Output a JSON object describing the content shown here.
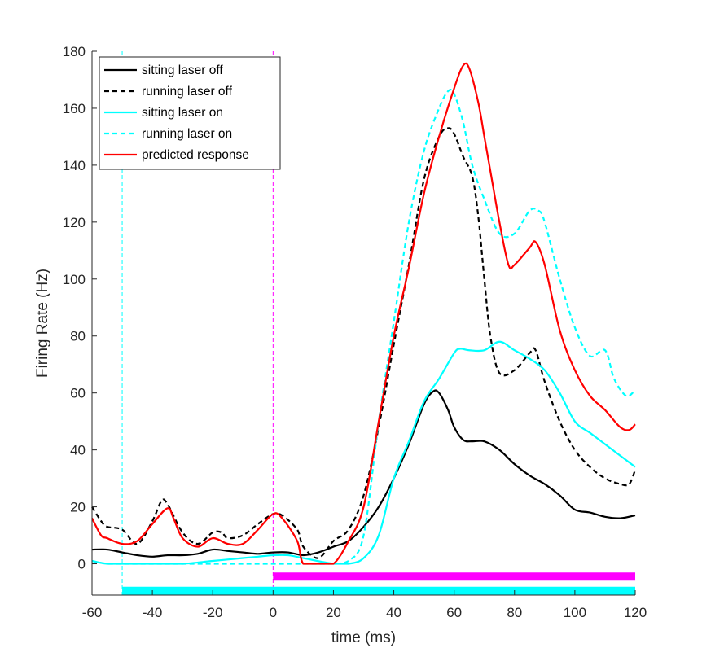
{
  "chart_data": {
    "type": "line",
    "title": "",
    "xlabel": "time (ms)",
    "ylabel": "Firing Rate (Hz)",
    "xlim": [
      -60,
      120
    ],
    "ylim": [
      -11,
      180
    ],
    "xticks": [
      -60,
      -40,
      -20,
      0,
      20,
      40,
      60,
      80,
      100,
      120
    ],
    "yticks": [
      0,
      20,
      40,
      60,
      80,
      100,
      120,
      140,
      160,
      180
    ],
    "grid": false,
    "legend_position": "top-left",
    "series": [
      {
        "name": "sitting laser off",
        "color": "#000000",
        "dash": "solid",
        "points": [
          [
            -60,
            5
          ],
          [
            -55,
            5
          ],
          [
            -50,
            4
          ],
          [
            -45,
            3
          ],
          [
            -40,
            2.5
          ],
          [
            -35,
            3
          ],
          [
            -30,
            3
          ],
          [
            -25,
            3.5
          ],
          [
            -20,
            5
          ],
          [
            -15,
            4.5
          ],
          [
            -10,
            4
          ],
          [
            -5,
            3.5
          ],
          [
            0,
            4
          ],
          [
            5,
            4
          ],
          [
            10,
            3
          ],
          [
            15,
            4
          ],
          [
            20,
            6
          ],
          [
            25,
            8
          ],
          [
            30,
            13
          ],
          [
            35,
            20
          ],
          [
            40,
            30
          ],
          [
            45,
            42
          ],
          [
            50,
            56
          ],
          [
            53,
            60.5
          ],
          [
            55,
            60
          ],
          [
            58,
            54
          ],
          [
            60,
            48
          ],
          [
            63,
            43.5
          ],
          [
            66,
            43
          ],
          [
            70,
            43
          ],
          [
            75,
            40
          ],
          [
            80,
            35
          ],
          [
            85,
            31
          ],
          [
            90,
            28
          ],
          [
            95,
            24
          ],
          [
            100,
            19
          ],
          [
            105,
            18
          ],
          [
            110,
            16.5
          ],
          [
            115,
            16
          ],
          [
            120,
            17
          ]
        ]
      },
      {
        "name": "running laser off",
        "color": "#000000",
        "dash": "dashed",
        "points": [
          [
            -60,
            20
          ],
          [
            -57,
            15
          ],
          [
            -55,
            13
          ],
          [
            -50,
            12
          ],
          [
            -45,
            7
          ],
          [
            -40,
            15
          ],
          [
            -37,
            22
          ],
          [
            -35,
            21
          ],
          [
            -30,
            11
          ],
          [
            -25,
            7
          ],
          [
            -20,
            11
          ],
          [
            -17,
            11
          ],
          [
            -15,
            9
          ],
          [
            -10,
            10
          ],
          [
            -5,
            14
          ],
          [
            0,
            17.5
          ],
          [
            3,
            17
          ],
          [
            8,
            12
          ],
          [
            10,
            6
          ],
          [
            15,
            2
          ],
          [
            20,
            8
          ],
          [
            25,
            12
          ],
          [
            30,
            24
          ],
          [
            35,
            48
          ],
          [
            40,
            77
          ],
          [
            45,
            105
          ],
          [
            50,
            135
          ],
          [
            55,
            150
          ],
          [
            58,
            153
          ],
          [
            60,
            151
          ],
          [
            63,
            143
          ],
          [
            66,
            136
          ],
          [
            68,
            122
          ],
          [
            70,
            100
          ],
          [
            72,
            80
          ],
          [
            75,
            67
          ],
          [
            80,
            68
          ],
          [
            85,
            74
          ],
          [
            87,
            75
          ],
          [
            90,
            64
          ],
          [
            95,
            50
          ],
          [
            100,
            40
          ],
          [
            105,
            34
          ],
          [
            110,
            30
          ],
          [
            115,
            28
          ],
          [
            118,
            28
          ],
          [
            120,
            33
          ]
        ]
      },
      {
        "name": "sitting laser on",
        "color": "#00ffff",
        "dash": "solid",
        "points": [
          [
            -60,
            1
          ],
          [
            -55,
            0
          ],
          [
            -50,
            0
          ],
          [
            -40,
            0
          ],
          [
            -30,
            0
          ],
          [
            -20,
            1
          ],
          [
            -10,
            2
          ],
          [
            -5,
            2.5
          ],
          [
            0,
            3
          ],
          [
            5,
            3
          ],
          [
            10,
            2
          ],
          [
            20,
            0
          ],
          [
            25,
            0
          ],
          [
            30,
            2
          ],
          [
            35,
            10
          ],
          [
            40,
            30
          ],
          [
            45,
            43
          ],
          [
            50,
            57
          ],
          [
            55,
            65
          ],
          [
            60,
            74
          ],
          [
            62,
            75.5
          ],
          [
            65,
            75
          ],
          [
            70,
            75
          ],
          [
            75,
            78
          ],
          [
            80,
            75
          ],
          [
            85,
            72
          ],
          [
            90,
            68
          ],
          [
            95,
            60
          ],
          [
            100,
            50
          ],
          [
            105,
            46
          ],
          [
            110,
            42
          ],
          [
            115,
            38
          ],
          [
            120,
            34
          ]
        ]
      },
      {
        "name": "running laser on",
        "color": "#00ffff",
        "dash": "dashed",
        "points": [
          [
            -60,
            1
          ],
          [
            -55,
            0
          ],
          [
            -50,
            0
          ],
          [
            -40,
            0
          ],
          [
            -30,
            0
          ],
          [
            -20,
            0
          ],
          [
            -10,
            0
          ],
          [
            0,
            0
          ],
          [
            10,
            0
          ],
          [
            20,
            0
          ],
          [
            25,
            1
          ],
          [
            30,
            10
          ],
          [
            35,
            50
          ],
          [
            40,
            85
          ],
          [
            45,
            120
          ],
          [
            50,
            145
          ],
          [
            55,
            160
          ],
          [
            58,
            166
          ],
          [
            60,
            165
          ],
          [
            63,
            155
          ],
          [
            66,
            140
          ],
          [
            70,
            128
          ],
          [
            75,
            116
          ],
          [
            80,
            116
          ],
          [
            85,
            124
          ],
          [
            88,
            124
          ],
          [
            90,
            120
          ],
          [
            95,
            100
          ],
          [
            100,
            83
          ],
          [
            105,
            73
          ],
          [
            110,
            75
          ],
          [
            113,
            65
          ],
          [
            117,
            59
          ],
          [
            120,
            61
          ]
        ]
      },
      {
        "name": "predicted response",
        "color": "#ff0000",
        "dash": "solid",
        "points": [
          [
            -60,
            16
          ],
          [
            -57,
            10
          ],
          [
            -55,
            9
          ],
          [
            -50,
            7
          ],
          [
            -45,
            8
          ],
          [
            -40,
            14
          ],
          [
            -35,
            19.5
          ],
          [
            -33,
            16
          ],
          [
            -30,
            9
          ],
          [
            -25,
            6
          ],
          [
            -20,
            9
          ],
          [
            -15,
            7
          ],
          [
            -10,
            7
          ],
          [
            -5,
            12
          ],
          [
            0,
            17.5
          ],
          [
            3,
            16
          ],
          [
            8,
            8
          ],
          [
            10,
            0
          ],
          [
            15,
            0
          ],
          [
            20,
            0
          ],
          [
            25,
            8
          ],
          [
            30,
            20
          ],
          [
            35,
            50
          ],
          [
            40,
            80
          ],
          [
            45,
            104
          ],
          [
            50,
            130
          ],
          [
            55,
            150
          ],
          [
            60,
            167
          ],
          [
            63,
            175
          ],
          [
            65,
            174
          ],
          [
            68,
            162
          ],
          [
            70,
            150
          ],
          [
            72,
            138
          ],
          [
            75,
            120
          ],
          [
            78,
            105
          ],
          [
            80,
            105
          ],
          [
            85,
            111
          ],
          [
            87,
            113
          ],
          [
            90,
            105
          ],
          [
            95,
            82
          ],
          [
            100,
            68
          ],
          [
            105,
            59
          ],
          [
            110,
            54
          ],
          [
            115,
            48
          ],
          [
            118,
            47
          ],
          [
            120,
            49
          ]
        ]
      }
    ],
    "reference_lines": [
      {
        "x": -50,
        "color": "#00ffff",
        "dash": "dashed"
      },
      {
        "x": 0,
        "color": "#ff00ff",
        "dash": "dashed"
      }
    ],
    "bars": [
      {
        "x_start": 0,
        "x_end": 120,
        "y": -4.5,
        "color": "#ff00ff"
      },
      {
        "x_start": -50,
        "x_end": 120,
        "y": -9.5,
        "color": "#00ffff"
      }
    ]
  }
}
